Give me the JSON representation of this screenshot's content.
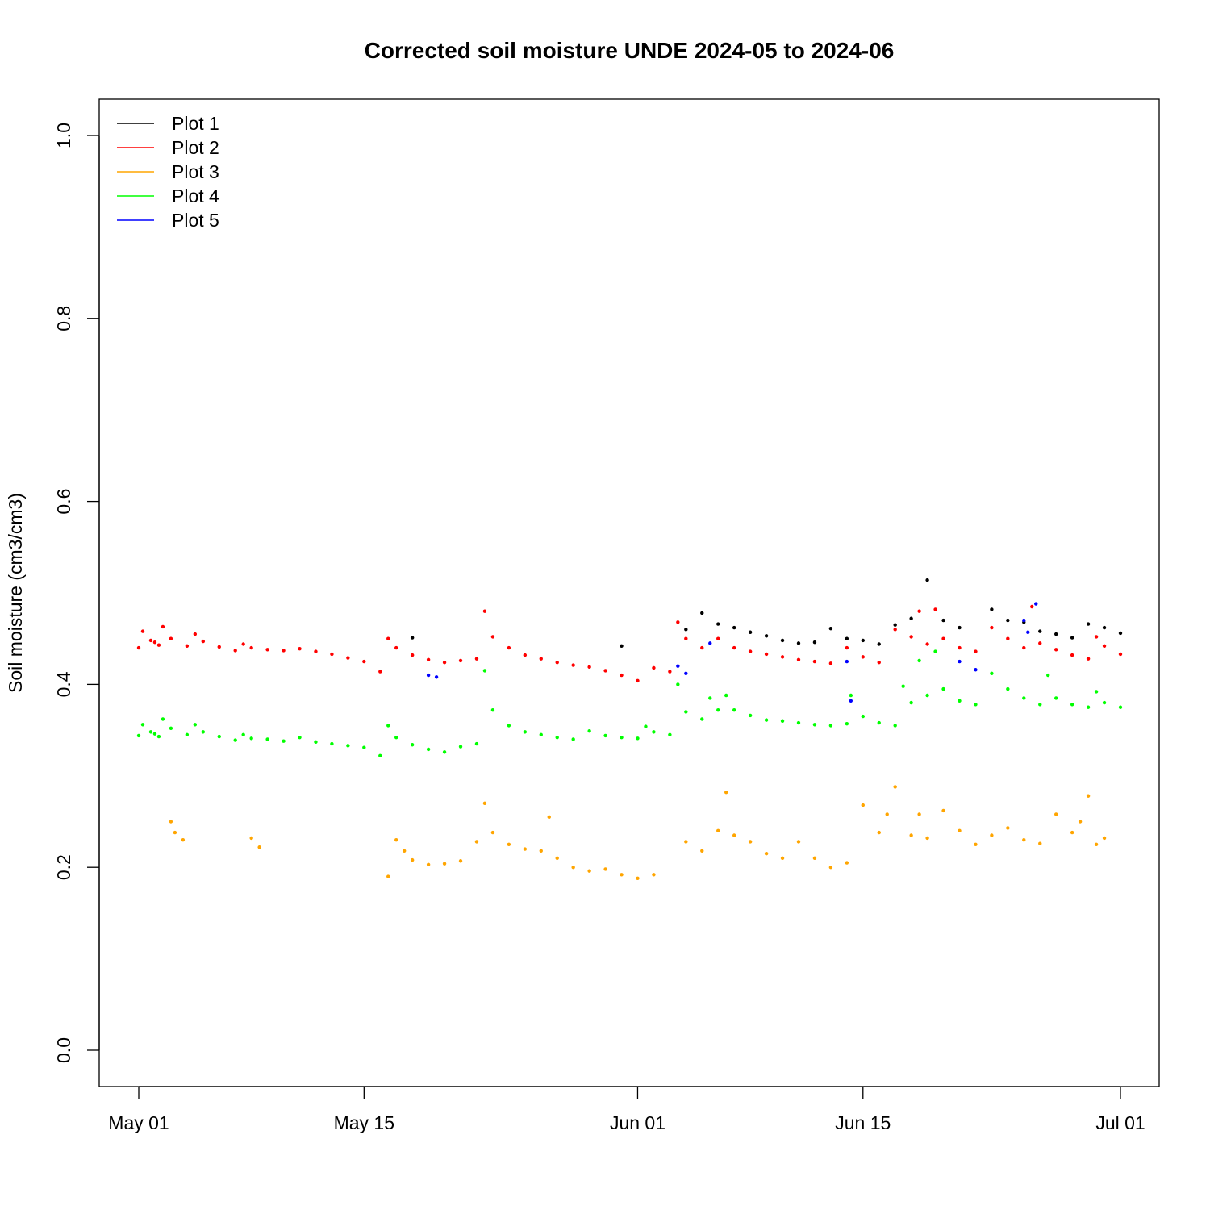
{
  "chart_data": {
    "type": "scatter",
    "title": "Corrected soil moisture UNDE 2024-05 to 2024-06",
    "xlabel": "",
    "ylabel": "Soil moisture (cm3/cm3)",
    "x_axis": {
      "type": "date",
      "range": [
        "2024-05-01",
        "2024-07-01"
      ],
      "ticks": [
        {
          "date": "2024-05-01",
          "label": "May 01"
        },
        {
          "date": "2024-05-15",
          "label": "May 15"
        },
        {
          "date": "2024-06-01",
          "label": "Jun 01"
        },
        {
          "date": "2024-06-15",
          "label": "Jun 15"
        },
        {
          "date": "2024-07-01",
          "label": "Jul 01"
        }
      ]
    },
    "y_axis": {
      "range": [
        0.0,
        1.0
      ],
      "ticks": [
        "0.0",
        "0.2",
        "0.4",
        "0.6",
        "0.8",
        "1.0"
      ]
    },
    "grid": false,
    "legend": {
      "placement": "top-left"
    },
    "series": [
      {
        "name": "Plot 1",
        "color": "#000000",
        "points": [
          [
            "2024-05-18",
            0.451
          ],
          [
            "2024-05-31",
            0.442
          ],
          [
            "2024-06-04",
            0.46
          ],
          [
            "2024-06-05",
            0.478
          ],
          [
            "2024-06-06",
            0.466
          ],
          [
            "2024-06-07",
            0.462
          ],
          [
            "2024-06-08",
            0.457
          ],
          [
            "2024-06-09",
            0.453
          ],
          [
            "2024-06-10",
            0.448
          ],
          [
            "2024-06-11",
            0.445
          ],
          [
            "2024-06-12",
            0.446
          ],
          [
            "2024-06-13",
            0.461
          ],
          [
            "2024-06-14",
            0.45
          ],
          [
            "2024-06-15",
            0.448
          ],
          [
            "2024-06-16",
            0.444
          ],
          [
            "2024-06-17",
            0.465
          ],
          [
            "2024-06-18",
            0.472
          ],
          [
            "2024-06-19",
            0.514
          ],
          [
            "2024-06-20",
            0.47
          ],
          [
            "2024-06-21",
            0.462
          ],
          [
            "2024-06-23",
            0.482
          ],
          [
            "2024-06-24",
            0.47
          ],
          [
            "2024-06-25",
            0.468
          ],
          [
            "2024-06-26",
            0.458
          ],
          [
            "2024-06-27",
            0.455
          ],
          [
            "2024-06-28",
            0.451
          ],
          [
            "2024-06-29",
            0.466
          ],
          [
            "2024-06-30",
            0.462
          ],
          [
            "2024-07-01",
            0.456
          ]
        ]
      },
      {
        "name": "Plot 2",
        "color": "#ff0000",
        "points": [
          [
            "2024-05-01",
            0.44
          ],
          [
            "2024-05-01T06",
            0.458
          ],
          [
            "2024-05-01T18",
            0.448
          ],
          [
            "2024-05-02",
            0.446
          ],
          [
            "2024-05-02T06",
            0.443
          ],
          [
            "2024-05-02T12",
            0.463
          ],
          [
            "2024-05-03",
            0.45
          ],
          [
            "2024-05-04",
            0.442
          ],
          [
            "2024-05-04T12",
            0.455
          ],
          [
            "2024-05-05",
            0.447
          ],
          [
            "2024-05-06",
            0.441
          ],
          [
            "2024-05-07",
            0.437
          ],
          [
            "2024-05-07T12",
            0.444
          ],
          [
            "2024-05-08",
            0.44
          ],
          [
            "2024-05-09",
            0.438
          ],
          [
            "2024-05-10",
            0.437
          ],
          [
            "2024-05-11",
            0.439
          ],
          [
            "2024-05-12",
            0.436
          ],
          [
            "2024-05-13",
            0.433
          ],
          [
            "2024-05-14",
            0.429
          ],
          [
            "2024-05-15",
            0.425
          ],
          [
            "2024-05-16",
            0.414
          ],
          [
            "2024-05-16T12",
            0.45
          ],
          [
            "2024-05-17",
            0.44
          ],
          [
            "2024-05-18",
            0.432
          ],
          [
            "2024-05-19",
            0.427
          ],
          [
            "2024-05-20",
            0.424
          ],
          [
            "2024-05-21",
            0.426
          ],
          [
            "2024-05-22",
            0.428
          ],
          [
            "2024-05-22T12",
            0.48
          ],
          [
            "2024-05-23",
            0.452
          ],
          [
            "2024-05-24",
            0.44
          ],
          [
            "2024-05-25",
            0.432
          ],
          [
            "2024-05-26",
            0.428
          ],
          [
            "2024-05-27",
            0.424
          ],
          [
            "2024-05-28",
            0.421
          ],
          [
            "2024-05-29",
            0.419
          ],
          [
            "2024-05-30",
            0.415
          ],
          [
            "2024-05-31",
            0.41
          ],
          [
            "2024-06-01",
            0.404
          ],
          [
            "2024-06-02",
            0.418
          ],
          [
            "2024-06-03",
            0.414
          ],
          [
            "2024-06-03T12",
            0.468
          ],
          [
            "2024-06-04",
            0.45
          ],
          [
            "2024-06-05",
            0.44
          ],
          [
            "2024-06-06",
            0.45
          ],
          [
            "2024-06-07",
            0.44
          ],
          [
            "2024-06-08",
            0.436
          ],
          [
            "2024-06-09",
            0.433
          ],
          [
            "2024-06-10",
            0.43
          ],
          [
            "2024-06-11",
            0.427
          ],
          [
            "2024-06-12",
            0.425
          ],
          [
            "2024-06-13",
            0.423
          ],
          [
            "2024-06-14",
            0.44
          ],
          [
            "2024-06-15",
            0.43
          ],
          [
            "2024-06-16",
            0.424
          ],
          [
            "2024-06-17",
            0.46
          ],
          [
            "2024-06-18",
            0.452
          ],
          [
            "2024-06-18T12",
            0.48
          ],
          [
            "2024-06-19",
            0.444
          ],
          [
            "2024-06-19T12",
            0.482
          ],
          [
            "2024-06-20",
            0.45
          ],
          [
            "2024-06-21",
            0.44
          ],
          [
            "2024-06-22",
            0.436
          ],
          [
            "2024-06-23",
            0.462
          ],
          [
            "2024-06-24",
            0.45
          ],
          [
            "2024-06-25",
            0.44
          ],
          [
            "2024-06-25T12",
            0.485
          ],
          [
            "2024-06-26",
            0.445
          ],
          [
            "2024-06-27",
            0.438
          ],
          [
            "2024-06-28",
            0.432
          ],
          [
            "2024-06-29",
            0.428
          ],
          [
            "2024-06-29T12",
            0.452
          ],
          [
            "2024-06-30",
            0.442
          ],
          [
            "2024-07-01",
            0.433
          ]
        ]
      },
      {
        "name": "Plot 3",
        "color": "#ffa500",
        "points": [
          [
            "2024-05-03",
            0.25
          ],
          [
            "2024-05-03T06",
            0.238
          ],
          [
            "2024-05-03T18",
            0.23
          ],
          [
            "2024-05-08",
            0.232
          ],
          [
            "2024-05-08T12",
            0.222
          ],
          [
            "2024-05-16T12",
            0.19
          ],
          [
            "2024-05-17",
            0.23
          ],
          [
            "2024-05-17T12",
            0.218
          ],
          [
            "2024-05-18",
            0.208
          ],
          [
            "2024-05-19",
            0.203
          ],
          [
            "2024-05-20",
            0.204
          ],
          [
            "2024-05-21",
            0.207
          ],
          [
            "2024-05-22",
            0.228
          ],
          [
            "2024-05-22T12",
            0.27
          ],
          [
            "2024-05-23",
            0.238
          ],
          [
            "2024-05-24",
            0.225
          ],
          [
            "2024-05-25",
            0.22
          ],
          [
            "2024-05-26",
            0.218
          ],
          [
            "2024-05-26T12",
            0.255
          ],
          [
            "2024-05-27",
            0.21
          ],
          [
            "2024-05-28",
            0.2
          ],
          [
            "2024-05-29",
            0.196
          ],
          [
            "2024-05-30",
            0.198
          ],
          [
            "2024-05-31",
            0.192
          ],
          [
            "2024-06-01",
            0.188
          ],
          [
            "2024-06-02",
            0.192
          ],
          [
            "2024-06-04",
            0.228
          ],
          [
            "2024-06-05",
            0.218
          ],
          [
            "2024-06-06",
            0.24
          ],
          [
            "2024-06-06T12",
            0.282
          ],
          [
            "2024-06-07",
            0.235
          ],
          [
            "2024-06-08",
            0.228
          ],
          [
            "2024-06-09",
            0.215
          ],
          [
            "2024-06-10",
            0.21
          ],
          [
            "2024-06-11",
            0.228
          ],
          [
            "2024-06-12",
            0.21
          ],
          [
            "2024-06-13",
            0.2
          ],
          [
            "2024-06-14",
            0.205
          ],
          [
            "2024-06-15",
            0.268
          ],
          [
            "2024-06-16",
            0.238
          ],
          [
            "2024-06-16T12",
            0.258
          ],
          [
            "2024-06-17",
            0.288
          ],
          [
            "2024-06-18",
            0.235
          ],
          [
            "2024-06-18T12",
            0.258
          ],
          [
            "2024-06-19",
            0.232
          ],
          [
            "2024-06-20",
            0.262
          ],
          [
            "2024-06-21",
            0.24
          ],
          [
            "2024-06-22",
            0.225
          ],
          [
            "2024-06-23",
            0.235
          ],
          [
            "2024-06-24",
            0.243
          ],
          [
            "2024-06-25",
            0.23
          ],
          [
            "2024-06-26",
            0.226
          ],
          [
            "2024-06-27",
            0.258
          ],
          [
            "2024-06-28",
            0.238
          ],
          [
            "2024-06-28T12",
            0.25
          ],
          [
            "2024-06-29",
            0.278
          ],
          [
            "2024-06-29T12",
            0.225
          ],
          [
            "2024-06-30",
            0.232
          ]
        ]
      },
      {
        "name": "Plot 4",
        "color": "#00ff00",
        "points": [
          [
            "2024-05-01",
            0.344
          ],
          [
            "2024-05-01T06",
            0.356
          ],
          [
            "2024-05-01T18",
            0.348
          ],
          [
            "2024-05-02",
            0.346
          ],
          [
            "2024-05-02T06",
            0.343
          ],
          [
            "2024-05-02T12",
            0.362
          ],
          [
            "2024-05-03",
            0.352
          ],
          [
            "2024-05-04",
            0.345
          ],
          [
            "2024-05-04T12",
            0.356
          ],
          [
            "2024-05-05",
            0.348
          ],
          [
            "2024-05-06",
            0.343
          ],
          [
            "2024-05-07",
            0.339
          ],
          [
            "2024-05-07T12",
            0.345
          ],
          [
            "2024-05-08",
            0.341
          ],
          [
            "2024-05-09",
            0.34
          ],
          [
            "2024-05-10",
            0.338
          ],
          [
            "2024-05-11",
            0.342
          ],
          [
            "2024-05-12",
            0.337
          ],
          [
            "2024-05-13",
            0.335
          ],
          [
            "2024-05-14",
            0.333
          ],
          [
            "2024-05-15",
            0.331
          ],
          [
            "2024-05-16",
            0.322
          ],
          [
            "2024-05-16T12",
            0.355
          ],
          [
            "2024-05-17",
            0.342
          ],
          [
            "2024-05-18",
            0.334
          ],
          [
            "2024-05-19",
            0.329
          ],
          [
            "2024-05-20",
            0.326
          ],
          [
            "2024-05-21",
            0.332
          ],
          [
            "2024-05-22",
            0.335
          ],
          [
            "2024-05-22T12",
            0.415
          ],
          [
            "2024-05-23",
            0.372
          ],
          [
            "2024-05-24",
            0.355
          ],
          [
            "2024-05-25",
            0.348
          ],
          [
            "2024-05-26",
            0.345
          ],
          [
            "2024-05-27",
            0.342
          ],
          [
            "2024-05-28",
            0.34
          ],
          [
            "2024-05-29",
            0.349
          ],
          [
            "2024-05-30",
            0.344
          ],
          [
            "2024-05-31",
            0.342
          ],
          [
            "2024-06-01",
            0.341
          ],
          [
            "2024-06-01T12",
            0.354
          ],
          [
            "2024-06-02",
            0.348
          ],
          [
            "2024-06-03",
            0.345
          ],
          [
            "2024-06-03T12",
            0.4
          ],
          [
            "2024-06-04",
            0.37
          ],
          [
            "2024-06-05",
            0.362
          ],
          [
            "2024-06-05T12",
            0.385
          ],
          [
            "2024-06-06",
            0.372
          ],
          [
            "2024-06-06T12",
            0.388
          ],
          [
            "2024-06-07",
            0.372
          ],
          [
            "2024-06-08",
            0.366
          ],
          [
            "2024-06-09",
            0.361
          ],
          [
            "2024-06-10",
            0.36
          ],
          [
            "2024-06-11",
            0.358
          ],
          [
            "2024-06-12",
            0.356
          ],
          [
            "2024-06-13",
            0.355
          ],
          [
            "2024-06-14",
            0.357
          ],
          [
            "2024-06-14T06",
            0.388
          ],
          [
            "2024-06-15",
            0.365
          ],
          [
            "2024-06-16",
            0.358
          ],
          [
            "2024-06-17",
            0.355
          ],
          [
            "2024-06-17T12",
            0.398
          ],
          [
            "2024-06-18",
            0.38
          ],
          [
            "2024-06-18T12",
            0.426
          ],
          [
            "2024-06-19",
            0.388
          ],
          [
            "2024-06-19T12",
            0.436
          ],
          [
            "2024-06-20",
            0.395
          ],
          [
            "2024-06-21",
            0.382
          ],
          [
            "2024-06-22",
            0.378
          ],
          [
            "2024-06-23",
            0.412
          ],
          [
            "2024-06-24",
            0.395
          ],
          [
            "2024-06-25",
            0.385
          ],
          [
            "2024-06-26",
            0.378
          ],
          [
            "2024-06-26T12",
            0.41
          ],
          [
            "2024-06-27",
            0.385
          ],
          [
            "2024-06-28",
            0.378
          ],
          [
            "2024-06-29",
            0.375
          ],
          [
            "2024-06-29T12",
            0.392
          ],
          [
            "2024-06-30",
            0.38
          ],
          [
            "2024-07-01",
            0.375
          ]
        ]
      },
      {
        "name": "Plot 5",
        "color": "#0000ff",
        "points": [
          [
            "2024-05-19",
            0.41
          ],
          [
            "2024-05-19T12",
            0.408
          ],
          [
            "2024-06-03T12",
            0.42
          ],
          [
            "2024-06-04",
            0.412
          ],
          [
            "2024-06-05T12",
            0.445
          ],
          [
            "2024-06-14",
            0.425
          ],
          [
            "2024-06-14T06",
            0.382
          ],
          [
            "2024-06-21",
            0.425
          ],
          [
            "2024-06-22",
            0.416
          ],
          [
            "2024-06-25",
            0.47
          ],
          [
            "2024-06-25T06",
            0.457
          ],
          [
            "2024-06-25T18",
            0.488
          ]
        ]
      }
    ]
  }
}
